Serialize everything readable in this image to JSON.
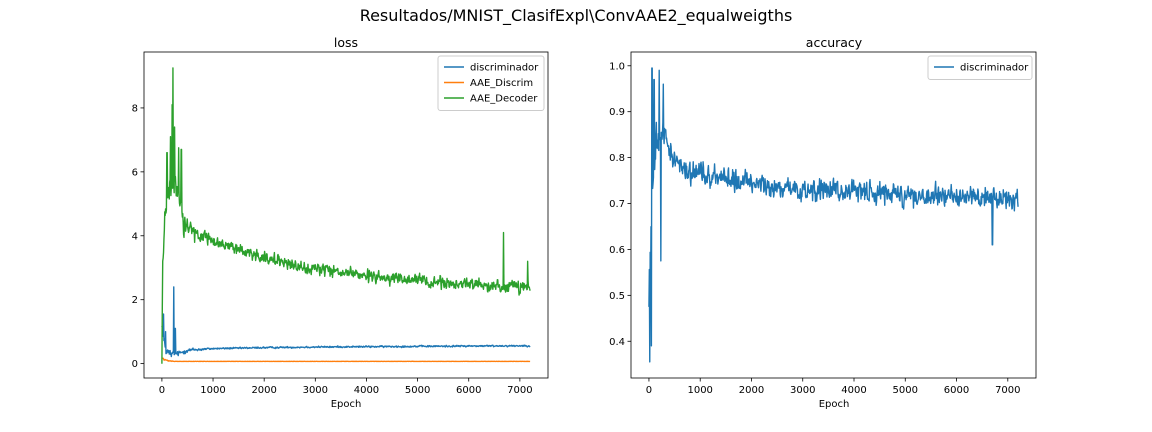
{
  "figure": {
    "suptitle": "Resultados/MNIST_ClasifExpl\\ConvAAE2_equalweigths"
  },
  "chart_data": [
    {
      "type": "line",
      "title": "loss",
      "xlabel": "Epoch",
      "ylabel": "",
      "xlim": [
        -350,
        7550
      ],
      "ylim": [
        -0.45,
        9.75
      ],
      "xticks": [
        0,
        1000,
        2000,
        3000,
        4000,
        5000,
        6000,
        7000
      ],
      "yticks": [
        0,
        2,
        4,
        6,
        8
      ],
      "legend_position": "top-right",
      "n_epochs": 7200,
      "series": [
        {
          "name": "discriminador",
          "color": "#1f77b4",
          "trend": [
            [
              0,
              1.35
            ],
            [
              30,
              0.7
            ],
            [
              100,
              0.35
            ],
            [
              200,
              0.28
            ],
            [
              300,
              0.3
            ],
            [
              500,
              0.42
            ],
            [
              1000,
              0.47
            ],
            [
              2000,
              0.5
            ],
            [
              3000,
              0.52
            ],
            [
              4000,
              0.53
            ],
            [
              5000,
              0.54
            ],
            [
              6000,
              0.55
            ],
            [
              7200,
              0.56
            ]
          ],
          "noise": [
            [
              0,
              0.4
            ],
            [
              300,
              0.15
            ],
            [
              1000,
              0.05
            ],
            [
              7200,
              0.05
            ]
          ],
          "spikes": [
            [
              30,
              1.55
            ],
            [
              75,
              1.0
            ],
            [
              230,
              2.4
            ],
            [
              260,
              1.1
            ]
          ]
        },
        {
          "name": "AAE_Discrim",
          "color": "#ff7f0e",
          "trend": [
            [
              0,
              0.2
            ],
            [
              50,
              0.12
            ],
            [
              150,
              0.08
            ],
            [
              300,
              0.07
            ],
            [
              7200,
              0.07
            ]
          ],
          "noise": [
            [
              0,
              0.06
            ],
            [
              300,
              0.005
            ],
            [
              7200,
              0.005
            ]
          ],
          "spikes": []
        },
        {
          "name": "AAE_Decoder",
          "color": "#2ca02c",
          "trend": [
            [
              0,
              0.2
            ],
            [
              15,
              3.0
            ],
            [
              60,
              4.8
            ],
            [
              150,
              5.4
            ],
            [
              250,
              5.6
            ],
            [
              350,
              5.2
            ],
            [
              420,
              4.3
            ],
            [
              700,
              4.1
            ],
            [
              1000,
              3.85
            ],
            [
              2000,
              3.3
            ],
            [
              3000,
              2.95
            ],
            [
              4000,
              2.75
            ],
            [
              5000,
              2.6
            ],
            [
              6000,
              2.45
            ],
            [
              7200,
              2.35
            ]
          ],
          "noise": [
            [
              0,
              0.8
            ],
            [
              400,
              0.6
            ],
            [
              1000,
              0.35
            ],
            [
              7200,
              0.38
            ]
          ],
          "spikes": [
            [
              100,
              6.6
            ],
            [
              170,
              7.1
            ],
            [
              200,
              8.1
            ],
            [
              215,
              9.25
            ],
            [
              245,
              7.4
            ],
            [
              330,
              6.75
            ],
            [
              380,
              6.7
            ],
            [
              6680,
              4.1
            ],
            [
              7150,
              3.2
            ]
          ]
        }
      ]
    },
    {
      "type": "line",
      "title": "accuracy",
      "xlabel": "Epoch",
      "ylabel": "",
      "xlim": [
        -350,
        7550
      ],
      "ylim": [
        0.32,
        1.03
      ],
      "xticks": [
        0,
        1000,
        2000,
        3000,
        4000,
        5000,
        6000,
        7000
      ],
      "yticks": [
        0.4,
        0.5,
        0.6,
        0.7,
        0.8,
        0.9,
        1.0
      ],
      "legend_position": "top-right",
      "n_epochs": 7200,
      "series": [
        {
          "name": "discriminador",
          "color": "#1f77b4",
          "trend": [
            [
              0,
              0.55
            ],
            [
              60,
              0.72
            ],
            [
              150,
              0.85
            ],
            [
              300,
              0.86
            ],
            [
              450,
              0.8
            ],
            [
              700,
              0.775
            ],
            [
              1000,
              0.765
            ],
            [
              2000,
              0.745
            ],
            [
              3000,
              0.73
            ],
            [
              4000,
              0.725
            ],
            [
              5000,
              0.72
            ],
            [
              6000,
              0.715
            ],
            [
              7200,
              0.71
            ]
          ],
          "noise": [
            [
              0,
              0.12
            ],
            [
              300,
              0.06
            ],
            [
              1000,
              0.045
            ],
            [
              7200,
              0.045
            ]
          ],
          "spikes": [
            [
              15,
              0.355
            ],
            [
              30,
              0.5
            ],
            [
              45,
              0.39
            ],
            [
              60,
              0.995
            ],
            [
              100,
              0.97
            ],
            [
              200,
              0.99
            ],
            [
              230,
              0.575
            ],
            [
              280,
              0.96
            ],
            [
              6700,
              0.61
            ]
          ]
        }
      ]
    }
  ]
}
